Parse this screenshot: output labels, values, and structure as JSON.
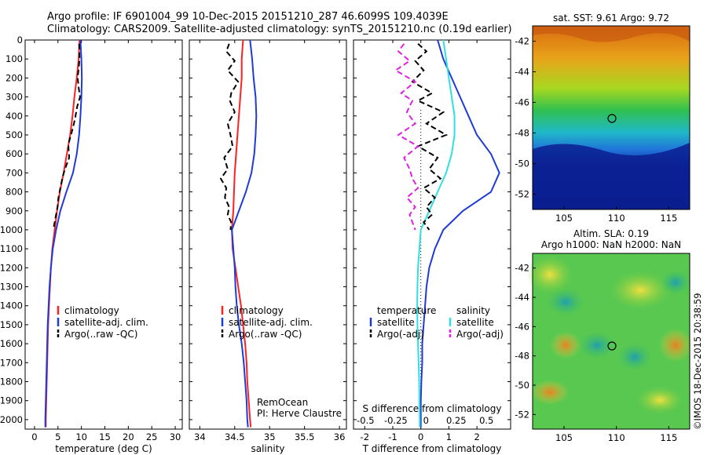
{
  "header": {
    "line1": "Argo profile: IF 6901004_99 10-Dec-2015 20151210_287 46.6099S 109.4039E",
    "line2": "Climatology: CARS2009. Satellite-adjusted climatology: synTS_20151210.nc (0.19d earlier)"
  },
  "side_text": {
    "map1_title": "sat. SST: 9.61 Argo: 9.72",
    "map2_title_1": "Altim. SLA: 0.19",
    "map2_title_2": "Argo h1000: NaN h2000: NaN",
    "credit": "©IMOS 18-Dec-2015 20:38:59"
  },
  "colors": {
    "climatology": "#ff2020",
    "satellite": "#1f3ad8",
    "argo": "#000000",
    "sat_salinity": "#30e0e0",
    "argo_salinity": "#e020e0"
  },
  "chart_data": [
    {
      "type": "line",
      "id": "temperature",
      "xlabel": "temperature (deg C)",
      "ylabel": "",
      "xlim": [
        -2,
        31.5
      ],
      "ylim": [
        2050,
        0
      ],
      "xticks": [
        0,
        5,
        10,
        15,
        20,
        25,
        30
      ],
      "xtick_labels": [
        "0",
        "5",
        "10",
        "15",
        "20",
        "25",
        "30"
      ],
      "yticks": [
        0,
        100,
        200,
        300,
        400,
        500,
        600,
        700,
        800,
        900,
        1000,
        1100,
        1200,
        1300,
        1400,
        1500,
        1600,
        1700,
        1800,
        1900,
        2000
      ],
      "ytick_labels": [
        "0",
        "100",
        "200",
        "300",
        "400",
        "500",
        "600",
        "700",
        "800",
        "900",
        "1000",
        "1100",
        "1200",
        "1300",
        "1400",
        "1500",
        "1600",
        "1700",
        "1800",
        "1900",
        "2000"
      ],
      "legend": [
        "climatology",
        "satellite-adj. clim.",
        "Argo(..raw -QC)"
      ],
      "series": [
        {
          "name": "climatology",
          "color": "#ff2020",
          "style": "solid",
          "x": [
            9.6,
            9.4,
            9.0,
            8.5,
            8.1,
            7.6,
            6.9,
            6.2,
            5.4,
            4.8,
            4.3,
            3.8,
            3.5,
            3.3,
            3.1,
            2.9,
            2.8,
            2.7,
            2.6,
            2.5,
            2.4,
            2.4
          ],
          "y": [
            0,
            100,
            200,
            300,
            400,
            500,
            600,
            700,
            800,
            900,
            1000,
            1100,
            1200,
            1300,
            1400,
            1500,
            1600,
            1700,
            1800,
            1900,
            2000,
            2040
          ]
        },
        {
          "name": "satellite-adj. clim.",
          "color": "#1f3ad8",
          "style": "solid",
          "x": [
            9.8,
            10.0,
            10.1,
            10.0,
            9.8,
            9.5,
            9.0,
            8.2,
            6.8,
            5.5,
            4.6,
            3.9,
            3.5,
            3.2,
            3.0,
            2.8,
            2.7,
            2.6,
            2.5,
            2.4,
            2.3,
            2.3
          ],
          "y": [
            0,
            100,
            200,
            300,
            400,
            500,
            600,
            700,
            800,
            900,
            1000,
            1100,
            1200,
            1300,
            1400,
            1500,
            1600,
            1700,
            1800,
            1900,
            2000,
            2040
          ]
        },
        {
          "name": "Argo(..raw -QC)",
          "color": "#000000",
          "style": "dashed",
          "x": [
            9.5,
            9.6,
            9.2,
            9.4,
            9.7,
            9.1,
            8.6,
            8.0,
            7.2,
            7.4,
            6.5,
            6.0,
            5.5,
            5.1,
            4.9,
            4.6,
            4.3,
            4.0
          ],
          "y": [
            20,
            100,
            200,
            250,
            300,
            350,
            420,
            480,
            550,
            620,
            680,
            720,
            780,
            830,
            880,
            920,
            960,
            1000
          ]
        }
      ]
    },
    {
      "type": "line",
      "id": "salinity",
      "xlabel": "salinity",
      "xlim": [
        33.85,
        36.1
      ],
      "ylim": [
        2050,
        0
      ],
      "xticks": [
        34,
        34.5,
        35,
        35.5,
        36
      ],
      "xtick_labels": [
        "34",
        "34.5",
        "35",
        "35.5",
        "36"
      ],
      "legend": [
        "climatology",
        "satellite-adj. clim.",
        "Argo(..raw -QC)"
      ],
      "annotation": [
        "RemOcean",
        "PI: Herve Claustre"
      ],
      "series": [
        {
          "name": "climatology",
          "color": "#ff2020",
          "style": "solid",
          "x": [
            34.62,
            34.6,
            34.6,
            34.58,
            34.56,
            34.54,
            34.52,
            34.5,
            34.49,
            34.48,
            34.46,
            34.47,
            34.51,
            34.55,
            34.59,
            34.62,
            34.65,
            34.67,
            34.68,
            34.7,
            34.72,
            34.73
          ],
          "y": [
            0,
            100,
            200,
            300,
            400,
            500,
            600,
            700,
            800,
            900,
            1000,
            1100,
            1200,
            1300,
            1400,
            1500,
            1600,
            1700,
            1800,
            1900,
            2000,
            2040
          ]
        },
        {
          "name": "satellite-adj. clim.",
          "color": "#1f3ad8",
          "style": "solid",
          "x": [
            34.72,
            34.75,
            34.77,
            34.8,
            34.81,
            34.8,
            34.78,
            34.74,
            34.66,
            34.56,
            34.46,
            34.48,
            34.5,
            34.51,
            34.53,
            34.56,
            34.6,
            34.63,
            34.65,
            34.67,
            34.68,
            34.69
          ],
          "y": [
            0,
            100,
            200,
            300,
            400,
            500,
            600,
            700,
            800,
            900,
            1000,
            1100,
            1200,
            1300,
            1400,
            1500,
            1600,
            1700,
            1800,
            1900,
            2000,
            2040
          ]
        },
        {
          "name": "Argo(..raw -QC)",
          "color": "#000000",
          "style": "dashed",
          "x": [
            34.42,
            34.38,
            34.5,
            34.4,
            34.55,
            34.45,
            34.43,
            34.5,
            34.4,
            34.44,
            34.47,
            34.35,
            34.4,
            34.3,
            34.38,
            34.36,
            34.42,
            34.4,
            34.45,
            34.44
          ],
          "y": [
            20,
            60,
            110,
            160,
            220,
            280,
            320,
            380,
            440,
            500,
            560,
            620,
            680,
            730,
            780,
            830,
            880,
            920,
            960,
            1000
          ]
        }
      ]
    },
    {
      "type": "line",
      "id": "difference",
      "xlabel": "T difference from climatology",
      "xlabel_top": "S difference from climatology",
      "xlim": [
        -2.4,
        3.2
      ],
      "ylim": [
        2050,
        0
      ],
      "xticks": [
        -2,
        -1,
        0,
        1,
        2
      ],
      "xtick_labels": [
        "-2",
        "-1",
        "0",
        "1",
        "2"
      ],
      "xticks_top": [
        -0.5,
        -0.25,
        0,
        0.25,
        0.5
      ],
      "xtick_labels_top": [
        "-0.5",
        "-0.25",
        "0",
        "0.25",
        "0.5"
      ],
      "legend_left_title": "temperature",
      "legend_right_title": "salinity",
      "legend": [
        "satellite",
        "Argo(-adj)",
        "satellite",
        "Argo(-adj)"
      ],
      "series": [
        {
          "name": "satellite",
          "quantity": "temperature",
          "color": "#1f3ad8",
          "style": "solid",
          "x": [
            0.6,
            0.8,
            1.1,
            1.4,
            1.7,
            2.0,
            2.5,
            2.8,
            2.5,
            1.5,
            0.8,
            0.5,
            0.3,
            0.2,
            0.15,
            0.1,
            0.05,
            0.05,
            0.02,
            0.0,
            0.0,
            0.0
          ],
          "y": [
            0,
            100,
            200,
            300,
            400,
            500,
            600,
            700,
            800,
            900,
            1000,
            1100,
            1200,
            1300,
            1400,
            1500,
            1600,
            1700,
            1800,
            1900,
            2000,
            2040
          ]
        },
        {
          "name": "satellite",
          "quantity": "salinity",
          "color": "#30e0e0",
          "style": "solid",
          "x": [
            0.8,
            0.9,
            1.0,
            1.1,
            1.2,
            1.2,
            1.1,
            0.9,
            0.6,
            0.3,
            0.0,
            -0.05,
            -0.1,
            -0.12,
            -0.13,
            -0.12,
            -0.1,
            -0.08,
            -0.06,
            -0.05,
            -0.04,
            -0.04
          ],
          "y": [
            0,
            100,
            200,
            300,
            400,
            500,
            600,
            700,
            800,
            900,
            1000,
            1100,
            1200,
            1300,
            1400,
            1500,
            1600,
            1700,
            1800,
            1900,
            2000,
            2040
          ]
        },
        {
          "name": "Argo(-adj)",
          "quantity": "temperature",
          "color": "#000000",
          "style": "dashed",
          "x": [
            -0.1,
            0.2,
            -0.2,
            0.1,
            -0.3,
            0.4,
            -0.1,
            0.8,
            0.2,
            0.9,
            -0.1,
            0.6,
            0.3,
            0.7,
            0.1,
            0.5,
            0.2,
            0.4,
            0.1,
            0.3
          ],
          "y": [
            20,
            60,
            110,
            160,
            220,
            280,
            320,
            380,
            440,
            500,
            560,
            620,
            680,
            730,
            780,
            830,
            880,
            920,
            960,
            1000
          ]
        },
        {
          "name": "Argo(-adj)",
          "quantity": "salinity",
          "color": "#e020e0",
          "style": "dashed",
          "x": [
            -0.6,
            -0.8,
            -0.4,
            -0.9,
            -0.2,
            -0.7,
            -0.3,
            -0.5,
            -0.2,
            -0.8,
            -0.1,
            -0.6,
            -0.4,
            -0.3,
            -0.1,
            -0.5,
            -0.2,
            -0.4,
            -0.3,
            -0.2
          ],
          "y": [
            20,
            60,
            110,
            160,
            220,
            280,
            320,
            380,
            440,
            500,
            560,
            620,
            680,
            730,
            780,
            830,
            880,
            920,
            960,
            1000
          ]
        }
      ]
    },
    {
      "type": "heatmap",
      "id": "sst-map",
      "title": "sat. SST: 9.61 Argo: 9.72",
      "xlim": [
        102,
        117
      ],
      "ylim": [
        -53,
        -41
      ],
      "xticks": [
        105,
        110,
        115
      ],
      "xtick_labels": [
        "105",
        "110",
        "115"
      ],
      "yticks": [
        -42,
        -44,
        -46,
        -48,
        -50,
        -52
      ],
      "ytick_labels": [
        "-42",
        "-44",
        "-46",
        "-48",
        "-50",
        "-52"
      ],
      "marker": {
        "lon": 109.4039,
        "lat": -46.6099
      }
    },
    {
      "type": "heatmap",
      "id": "sla-map",
      "title": "Altim. SLA: 0.19",
      "subtitle": "Argo h1000: NaN h2000: NaN",
      "xlim": [
        102,
        117
      ],
      "ylim": [
        -53,
        -41
      ],
      "xticks": [
        105,
        110,
        115
      ],
      "xtick_labels": [
        "105",
        "110",
        "115"
      ],
      "yticks": [
        -42,
        -44,
        -46,
        -48,
        -50,
        -52
      ],
      "ytick_labels": [
        "-42",
        "-44",
        "-46",
        "-48",
        "-50",
        "-52"
      ],
      "marker": {
        "lon": 109.4039,
        "lat": -46.6099
      }
    }
  ]
}
